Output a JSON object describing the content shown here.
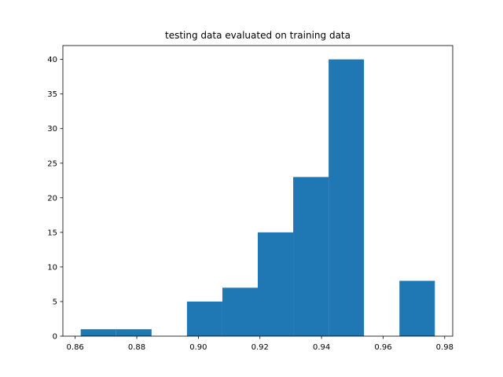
{
  "chart_data": {
    "type": "bar",
    "title": "testing data evaluated on training data",
    "xlabel": "",
    "ylabel": "",
    "bin_edges": [
      0.8618,
      0.8733,
      0.8848,
      0.8963,
      0.9078,
      0.9193,
      0.9308,
      0.9423,
      0.9538,
      0.9653,
      0.9768
    ],
    "counts": [
      1,
      1,
      0,
      5,
      7,
      15,
      23,
      40,
      0,
      8
    ],
    "xlim": [
      0.856,
      0.9826
    ],
    "ylim": [
      0,
      42
    ],
    "xticks": [
      0.86,
      0.88,
      0.9,
      0.92,
      0.94,
      0.96,
      0.98
    ],
    "xtick_labels": [
      "0.86",
      "0.88",
      "0.90",
      "0.92",
      "0.94",
      "0.96",
      "0.98"
    ],
    "yticks": [
      0,
      5,
      10,
      15,
      20,
      25,
      30,
      35,
      40
    ],
    "ytick_labels": [
      "0",
      "5",
      "10",
      "15",
      "20",
      "25",
      "30",
      "35",
      "40"
    ],
    "bar_color": "#1f77b4",
    "grid": false,
    "legend": "none"
  }
}
